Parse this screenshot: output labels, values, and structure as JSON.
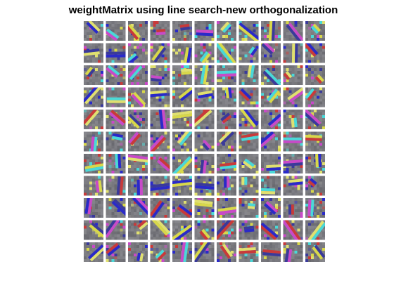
{
  "title": "weightMatrix using line search-new orthogonalization"
}
